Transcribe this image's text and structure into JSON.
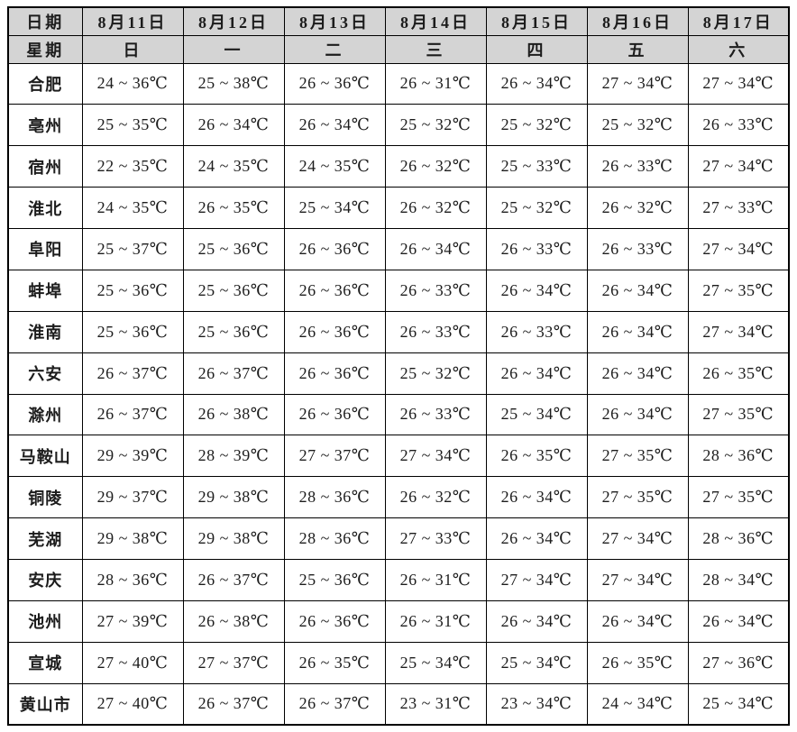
{
  "table": {
    "corner_label": "日期",
    "week_label": "星期",
    "dates": [
      "8月11日",
      "8月12日",
      "8月13日",
      "8月14日",
      "8月15日",
      "8月16日",
      "8月17日"
    ],
    "weekdays": [
      "日",
      "一",
      "二",
      "三",
      "四",
      "五",
      "六"
    ],
    "rows": [
      {
        "city": "合肥",
        "temps": [
          "24 ~ 36℃",
          "25 ~ 38℃",
          "26 ~ 36℃",
          "26 ~ 31℃",
          "26 ~ 34℃",
          "27 ~ 34℃",
          "27 ~ 34℃"
        ]
      },
      {
        "city": "亳州",
        "temps": [
          "25 ~ 35℃",
          "26 ~ 34℃",
          "26 ~ 34℃",
          "25 ~ 32℃",
          "25 ~ 32℃",
          "25 ~ 32℃",
          "26 ~ 33℃"
        ]
      },
      {
        "city": "宿州",
        "temps": [
          "22 ~ 35℃",
          "24 ~ 35℃",
          "24 ~ 35℃",
          "26 ~ 32℃",
          "25 ~ 33℃",
          "26 ~ 33℃",
          "27 ~ 34℃"
        ]
      },
      {
        "city": "淮北",
        "temps": [
          "24 ~ 35℃",
          "26 ~ 35℃",
          "25 ~ 34℃",
          "26 ~ 32℃",
          "25 ~ 32℃",
          "26 ~ 32℃",
          "27 ~ 33℃"
        ]
      },
      {
        "city": "阜阳",
        "temps": [
          "25 ~ 37℃",
          "25 ~ 36℃",
          "26 ~ 36℃",
          "26 ~ 34℃",
          "26 ~ 33℃",
          "26 ~ 33℃",
          "27 ~ 34℃"
        ]
      },
      {
        "city": "蚌埠",
        "temps": [
          "25 ~ 36℃",
          "25 ~ 36℃",
          "26 ~ 36℃",
          "26 ~ 33℃",
          "26 ~ 34℃",
          "26 ~ 34℃",
          "27 ~ 35℃"
        ]
      },
      {
        "city": "淮南",
        "temps": [
          "25 ~ 36℃",
          "25 ~ 36℃",
          "26 ~ 36℃",
          "26 ~ 33℃",
          "26 ~ 33℃",
          "26 ~ 34℃",
          "27 ~ 34℃"
        ]
      },
      {
        "city": "六安",
        "temps": [
          "26 ~ 37℃",
          "26 ~ 37℃",
          "26 ~ 36℃",
          "25 ~ 32℃",
          "26 ~ 34℃",
          "26 ~ 34℃",
          "26 ~ 35℃"
        ]
      },
      {
        "city": "滁州",
        "temps": [
          "26 ~ 37℃",
          "26 ~ 38℃",
          "26 ~ 36℃",
          "26 ~ 33℃",
          "25 ~ 34℃",
          "26 ~ 34℃",
          "27 ~ 35℃"
        ]
      },
      {
        "city": "马鞍山",
        "temps": [
          "29 ~ 39℃",
          "28 ~ 39℃",
          "27 ~ 37℃",
          "27 ~ 34℃",
          "26 ~ 35℃",
          "27 ~ 35℃",
          "28 ~ 36℃"
        ]
      },
      {
        "city": "铜陵",
        "temps": [
          "29 ~ 37℃",
          "29 ~ 38℃",
          "28 ~ 36℃",
          "26 ~ 32℃",
          "26 ~ 34℃",
          "27 ~ 35℃",
          "27 ~ 35℃"
        ]
      },
      {
        "city": "芜湖",
        "temps": [
          "29 ~ 38℃",
          "29 ~ 38℃",
          "28 ~ 36℃",
          "27 ~ 33℃",
          "26 ~ 34℃",
          "27 ~ 34℃",
          "28 ~ 36℃"
        ]
      },
      {
        "city": "安庆",
        "temps": [
          "28 ~ 36℃",
          "26 ~ 37℃",
          "25 ~ 36℃",
          "26 ~ 31℃",
          "27 ~ 34℃",
          "27 ~ 34℃",
          "28 ~ 34℃"
        ]
      },
      {
        "city": "池州",
        "temps": [
          "27 ~ 39℃",
          "26 ~ 38℃",
          "26 ~ 36℃",
          "26 ~ 31℃",
          "26 ~ 34℃",
          "26 ~ 34℃",
          "26 ~ 34℃"
        ]
      },
      {
        "city": "宣城",
        "temps": [
          "27 ~ 40℃",
          "27 ~ 37℃",
          "26 ~ 35℃",
          "25 ~ 34℃",
          "25 ~ 34℃",
          "26 ~ 35℃",
          "27 ~ 36℃"
        ]
      },
      {
        "city": "黄山市",
        "temps": [
          "27 ~ 40℃",
          "26 ~ 37℃",
          "26 ~ 37℃",
          "23 ~ 31℃",
          "23 ~ 34℃",
          "24 ~ 34℃",
          "25 ~ 34℃"
        ]
      }
    ],
    "colors": {
      "header_background": "#d4d4d4",
      "border": "#000000",
      "text": "#1c1c1c"
    }
  }
}
